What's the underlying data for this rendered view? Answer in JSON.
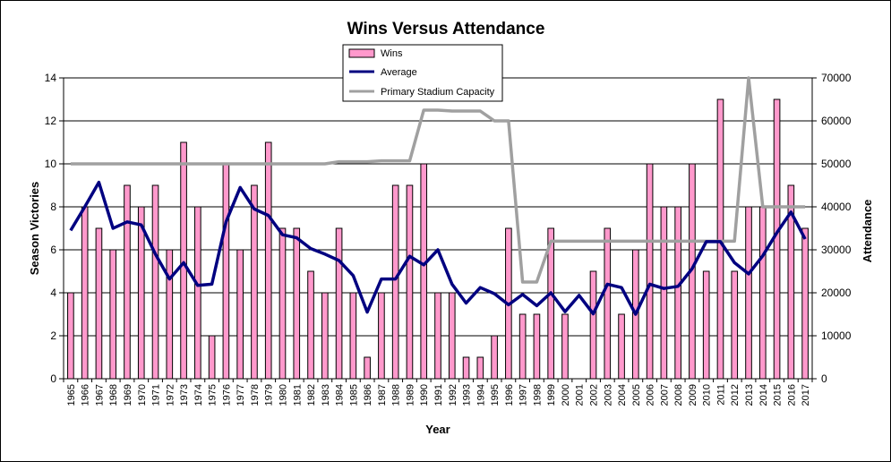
{
  "chart_data": {
    "type": "bar",
    "title": "Wins Versus Attendance",
    "xlabel": "Year",
    "ylabel": "Season Victories",
    "y2label": "Attendance",
    "ylim": [
      0,
      14
    ],
    "y2lim": [
      0,
      70000
    ],
    "yticks": [
      "0",
      "2",
      "4",
      "6",
      "8",
      "10",
      "12",
      "14"
    ],
    "y2ticks": [
      "0",
      "10000",
      "20000",
      "30000",
      "40000",
      "50000",
      "60000",
      "70000"
    ],
    "grid": true,
    "legend_position": "top-center",
    "categories": [
      "1965",
      "1966",
      "1967",
      "1968",
      "1969",
      "1970",
      "1971",
      "1972",
      "1973",
      "1974",
      "1975",
      "1976",
      "1977",
      "1978",
      "1979",
      "1980",
      "1981",
      "1982",
      "1983",
      "1984",
      "1985",
      "1986",
      "1987",
      "1988",
      "1989",
      "1990",
      "1991",
      "1992",
      "1993",
      "1994",
      "1995",
      "1996",
      "1997",
      "1998",
      "1999",
      "2000",
      "2001",
      "2002",
      "2003",
      "2004",
      "2005",
      "2006",
      "2007",
      "2008",
      "2009",
      "2010",
      "2011",
      "2012",
      "2013",
      "2014",
      "2015",
      "2016",
      "2017"
    ],
    "series": [
      {
        "name": "Wins",
        "kind": "bar",
        "axis": "left",
        "color": "#ff99cc",
        "values": [
          4,
          8,
          7,
          6,
          9,
          8,
          9,
          6,
          11,
          8,
          2,
          10,
          6,
          9,
          11,
          7,
          7,
          5,
          4,
          7,
          4,
          1,
          4,
          9,
          9,
          10,
          4,
          4,
          1,
          1,
          2,
          7,
          3,
          3,
          7,
          3,
          0,
          5,
          7,
          3,
          6,
          10,
          8,
          8,
          10,
          5,
          13,
          5,
          8,
          8,
          13,
          9,
          7
        ]
      },
      {
        "name": "Average",
        "kind": "line",
        "axis": "right",
        "color": "#000080",
        "values": [
          34500,
          40000,
          45700,
          35000,
          36500,
          35800,
          29000,
          23200,
          27000,
          21700,
          22000,
          36500,
          44500,
          39500,
          38000,
          33500,
          32800,
          30300,
          29000,
          27500,
          24000,
          15500,
          23200,
          23200,
          28500,
          26500,
          30000,
          22000,
          17600,
          21200,
          19800,
          17200,
          19600,
          17000,
          20000,
          15600,
          19400,
          15100,
          22000,
          21200,
          15000,
          22000,
          21000,
          21500,
          25600,
          31900,
          31900,
          27000,
          24400,
          28600,
          34000,
          38800,
          32500
        ]
      },
      {
        "name": "Primary Stadium Capacity",
        "kind": "line",
        "axis": "right",
        "color": "#a0a0a0",
        "values": [
          50000,
          50000,
          50000,
          50000,
          50000,
          50000,
          50000,
          50000,
          50000,
          50000,
          50000,
          50000,
          50000,
          50000,
          50000,
          50000,
          50000,
          50000,
          50000,
          50500,
          50500,
          50500,
          50700,
          50700,
          50700,
          62500,
          62500,
          62300,
          62300,
          62300,
          60000,
          60000,
          22500,
          22500,
          32000,
          32000,
          32000,
          32000,
          32000,
          32000,
          32000,
          32000,
          32000,
          32000,
          32000,
          32000,
          32000,
          32000,
          70000,
          40000,
          40000,
          40000,
          40000
        ]
      }
    ]
  }
}
